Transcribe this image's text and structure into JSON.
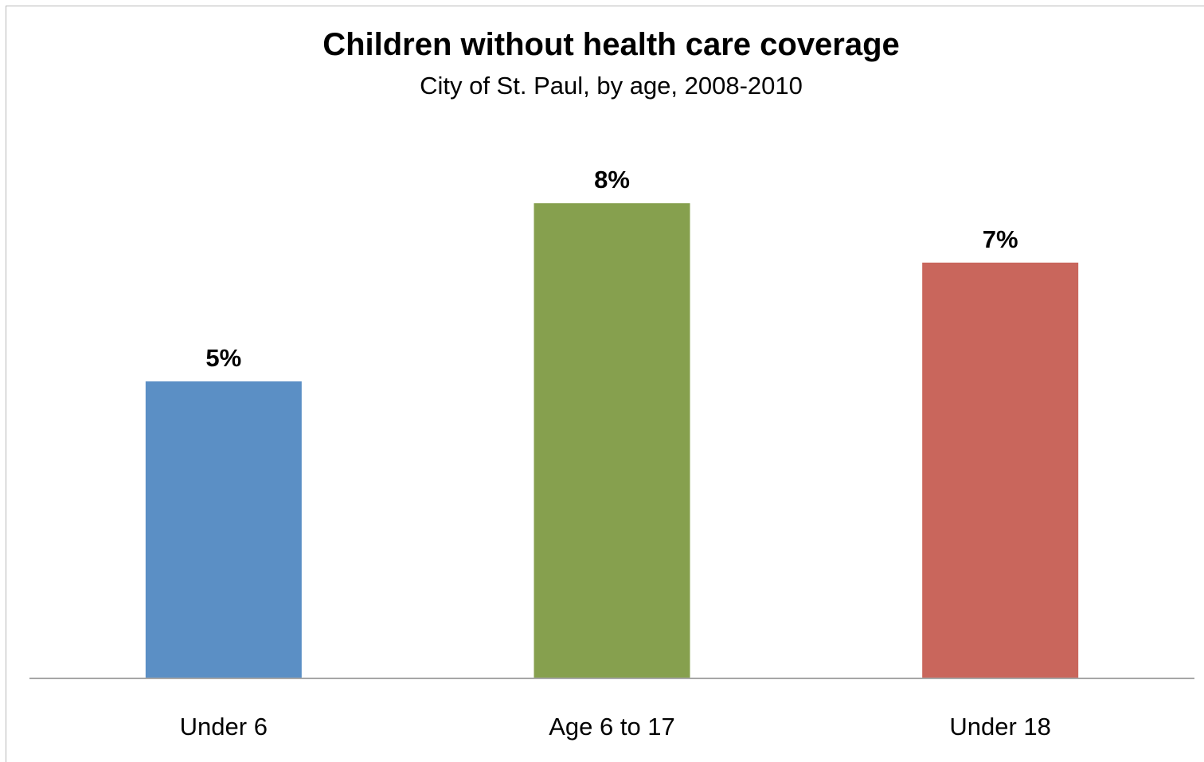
{
  "chart_data": {
    "type": "bar",
    "title": "Children without health care coverage",
    "subtitle": "City of St. Paul, by age, 2008-2010",
    "categories": [
      "Under 6",
      "Age 6 to 17",
      "Under 18"
    ],
    "values": [
      5,
      8,
      7
    ],
    "data_labels": [
      "5%",
      "8%",
      "7%"
    ],
    "colors": [
      "#5b8fc5",
      "#86a04e",
      "#c9665c"
    ],
    "ylim": [
      0,
      10
    ],
    "grid": false,
    "legend": "none",
    "xlabel": "",
    "ylabel": ""
  }
}
